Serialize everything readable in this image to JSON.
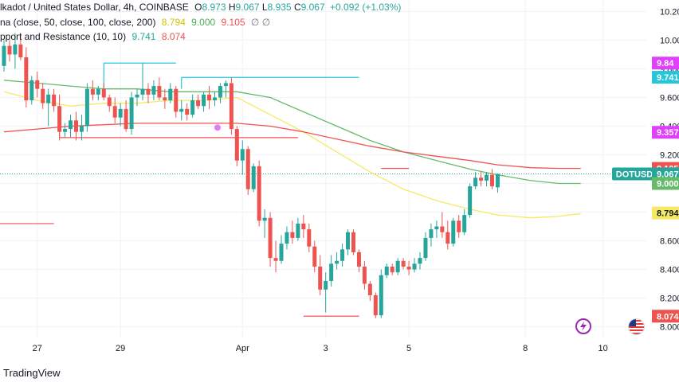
{
  "header": {
    "symbol_line": "lkadot / United States Dollar, 4h, COINBASE",
    "ohlc": [
      {
        "label": "O",
        "value": "8.973"
      },
      {
        "label": "H",
        "value": "9.067"
      },
      {
        "label": "L",
        "value": "8.935"
      },
      {
        "label": "C",
        "value": "9.067"
      }
    ],
    "change": "+0.092 (+1.03%)",
    "ma_line_label": "na (close, 50, close, 100, close, 200)",
    "ma_values": [
      "8.794",
      "9.000",
      "9.105"
    ],
    "ma_tail": "∅ ∅",
    "sr_line_label": "pport and Resistance (10, 10)",
    "sr_values": [
      "9.741",
      "8.074"
    ]
  },
  "footer": {
    "brand": "TradingView"
  },
  "colors": {
    "up": "#26a69a",
    "down": "#ef5350",
    "ma50": "#f5ea62",
    "ma100": "#66bb6a",
    "ma200": "#ef5350",
    "resistance": "#26c6da",
    "support": "#ef5350",
    "text": "#131722",
    "axis_text": "#131722",
    "grid": "#f0f3fa",
    "magenta": "#e040fb",
    "red_label": "#ef5350"
  },
  "chart_data": {
    "type": "candlestick",
    "title": "",
    "xlabel": "",
    "ylabel": "",
    "ylim": [
      7.92,
      10.28
    ],
    "y_ticks": [
      "10.200",
      "10.000",
      "9.800",
      "9.600",
      "9.400",
      "9.200",
      "9.000",
      "8.800",
      "8.600",
      "8.400",
      "8.200",
      "8.000"
    ],
    "x_ticks": [
      "27",
      "29",
      "Apr",
      "3",
      "5",
      "8",
      "10"
    ],
    "grid": true,
    "candles": [
      {
        "o": 9.82,
        "h": 10.0,
        "l": 9.78,
        "c": 9.96
      },
      {
        "o": 9.96,
        "h": 10.0,
        "l": 9.85,
        "c": 9.9
      },
      {
        "o": 9.9,
        "h": 10.05,
        "l": 9.8,
        "c": 9.97
      },
      {
        "o": 9.97,
        "h": 10.05,
        "l": 9.86,
        "c": 9.88
      },
      {
        "o": 9.88,
        "h": 9.95,
        "l": 9.53,
        "c": 9.58
      },
      {
        "o": 9.58,
        "h": 9.75,
        "l": 9.55,
        "c": 9.72
      },
      {
        "o": 9.72,
        "h": 9.78,
        "l": 9.6,
        "c": 9.66
      },
      {
        "o": 9.66,
        "h": 9.7,
        "l": 9.52,
        "c": 9.56
      },
      {
        "o": 9.56,
        "h": 9.66,
        "l": 9.4,
        "c": 9.62
      },
      {
        "o": 9.62,
        "h": 9.66,
        "l": 9.5,
        "c": 9.54
      },
      {
        "o": 9.54,
        "h": 9.62,
        "l": 9.3,
        "c": 9.36
      },
      {
        "o": 9.36,
        "h": 9.42,
        "l": 9.32,
        "c": 9.38
      },
      {
        "o": 9.38,
        "h": 9.48,
        "l": 9.32,
        "c": 9.44
      },
      {
        "o": 9.44,
        "h": 9.5,
        "l": 9.3,
        "c": 9.36
      },
      {
        "o": 9.36,
        "h": 9.48,
        "l": 9.3,
        "c": 9.4
      },
      {
        "o": 9.4,
        "h": 9.7,
        "l": 9.36,
        "c": 9.66
      },
      {
        "o": 9.66,
        "h": 9.72,
        "l": 9.58,
        "c": 9.62
      },
      {
        "o": 9.62,
        "h": 9.68,
        "l": 9.58,
        "c": 9.66
      },
      {
        "o": 9.66,
        "h": 9.7,
        "l": 9.58,
        "c": 9.6
      },
      {
        "o": 9.6,
        "h": 9.62,
        "l": 9.5,
        "c": 9.54
      },
      {
        "o": 9.54,
        "h": 9.6,
        "l": 9.42,
        "c": 9.46
      },
      {
        "o": 9.46,
        "h": 9.56,
        "l": 9.4,
        "c": 9.52
      },
      {
        "o": 9.52,
        "h": 9.58,
        "l": 9.36,
        "c": 9.38
      },
      {
        "o": 9.38,
        "h": 9.64,
        "l": 9.34,
        "c": 9.6
      },
      {
        "o": 9.6,
        "h": 9.66,
        "l": 9.54,
        "c": 9.62
      },
      {
        "o": 9.62,
        "h": 9.84,
        "l": 9.58,
        "c": 9.66
      },
      {
        "o": 9.66,
        "h": 9.7,
        "l": 9.56,
        "c": 9.62
      },
      {
        "o": 9.62,
        "h": 9.72,
        "l": 9.58,
        "c": 9.68
      },
      {
        "o": 9.68,
        "h": 9.74,
        "l": 9.58,
        "c": 9.6
      },
      {
        "o": 9.6,
        "h": 9.66,
        "l": 9.52,
        "c": 9.58
      },
      {
        "o": 9.58,
        "h": 9.7,
        "l": 9.56,
        "c": 9.66
      },
      {
        "o": 9.66,
        "h": 9.68,
        "l": 9.46,
        "c": 9.5
      },
      {
        "o": 9.5,
        "h": 9.58,
        "l": 9.44,
        "c": 9.52
      },
      {
        "o": 9.52,
        "h": 9.56,
        "l": 9.44,
        "c": 9.48
      },
      {
        "o": 9.48,
        "h": 9.62,
        "l": 9.46,
        "c": 9.58
      },
      {
        "o": 9.58,
        "h": 9.62,
        "l": 9.52,
        "c": 9.54
      },
      {
        "o": 9.54,
        "h": 9.64,
        "l": 9.5,
        "c": 9.62
      },
      {
        "o": 9.62,
        "h": 9.68,
        "l": 9.52,
        "c": 9.58
      },
      {
        "o": 9.58,
        "h": 9.64,
        "l": 9.54,
        "c": 9.6
      },
      {
        "o": 9.6,
        "h": 9.7,
        "l": 9.56,
        "c": 9.68
      },
      {
        "o": 9.68,
        "h": 9.72,
        "l": 9.6,
        "c": 9.7
      },
      {
        "o": 9.7,
        "h": 9.74,
        "l": 9.34,
        "c": 9.38
      },
      {
        "o": 9.38,
        "h": 9.4,
        "l": 9.12,
        "c": 9.16
      },
      {
        "o": 9.16,
        "h": 9.3,
        "l": 9.06,
        "c": 9.24
      },
      {
        "o": 9.24,
        "h": 9.26,
        "l": 8.92,
        "c": 8.96
      },
      {
        "o": 8.96,
        "h": 9.14,
        "l": 8.94,
        "c": 9.12
      },
      {
        "o": 9.12,
        "h": 9.16,
        "l": 8.7,
        "c": 8.74
      },
      {
        "o": 8.74,
        "h": 8.82,
        "l": 8.62,
        "c": 8.76
      },
      {
        "o": 8.76,
        "h": 8.8,
        "l": 8.42,
        "c": 8.48
      },
      {
        "o": 8.48,
        "h": 8.6,
        "l": 8.38,
        "c": 8.46
      },
      {
        "o": 8.46,
        "h": 8.64,
        "l": 8.44,
        "c": 8.58
      },
      {
        "o": 8.58,
        "h": 8.7,
        "l": 8.54,
        "c": 8.66
      },
      {
        "o": 8.66,
        "h": 8.74,
        "l": 8.58,
        "c": 8.62
      },
      {
        "o": 8.62,
        "h": 8.76,
        "l": 8.6,
        "c": 8.72
      },
      {
        "o": 8.72,
        "h": 8.78,
        "l": 8.62,
        "c": 8.68
      },
      {
        "o": 8.68,
        "h": 8.72,
        "l": 8.52,
        "c": 8.56
      },
      {
        "o": 8.56,
        "h": 8.6,
        "l": 8.38,
        "c": 8.42
      },
      {
        "o": 8.42,
        "h": 8.5,
        "l": 8.22,
        "c": 8.26
      },
      {
        "o": 8.26,
        "h": 8.38,
        "l": 8.1,
        "c": 8.32
      },
      {
        "o": 8.32,
        "h": 8.5,
        "l": 8.28,
        "c": 8.44
      },
      {
        "o": 8.44,
        "h": 8.52,
        "l": 8.4,
        "c": 8.46
      },
      {
        "o": 8.46,
        "h": 8.58,
        "l": 8.42,
        "c": 8.54
      },
      {
        "o": 8.54,
        "h": 8.68,
        "l": 8.5,
        "c": 8.66
      },
      {
        "o": 8.66,
        "h": 8.68,
        "l": 8.5,
        "c": 8.52
      },
      {
        "o": 8.52,
        "h": 8.54,
        "l": 8.38,
        "c": 8.42
      },
      {
        "o": 8.42,
        "h": 8.46,
        "l": 8.26,
        "c": 8.3
      },
      {
        "o": 8.3,
        "h": 8.32,
        "l": 8.18,
        "c": 8.22
      },
      {
        "o": 8.22,
        "h": 8.24,
        "l": 8.06,
        "c": 8.08
      },
      {
        "o": 8.08,
        "h": 8.4,
        "l": 8.06,
        "c": 8.36
      },
      {
        "o": 8.36,
        "h": 8.44,
        "l": 8.34,
        "c": 8.42
      },
      {
        "o": 8.42,
        "h": 8.44,
        "l": 8.36,
        "c": 8.38
      },
      {
        "o": 8.38,
        "h": 8.48,
        "l": 8.36,
        "c": 8.46
      },
      {
        "o": 8.46,
        "h": 8.48,
        "l": 8.4,
        "c": 8.42
      },
      {
        "o": 8.42,
        "h": 8.46,
        "l": 8.36,
        "c": 8.4
      },
      {
        "o": 8.4,
        "h": 8.48,
        "l": 8.38,
        "c": 8.44
      },
      {
        "o": 8.44,
        "h": 8.52,
        "l": 8.4,
        "c": 8.48
      },
      {
        "o": 8.48,
        "h": 8.66,
        "l": 8.46,
        "c": 8.62
      },
      {
        "o": 8.62,
        "h": 8.72,
        "l": 8.56,
        "c": 8.68
      },
      {
        "o": 8.68,
        "h": 8.74,
        "l": 8.62,
        "c": 8.7
      },
      {
        "o": 8.7,
        "h": 8.8,
        "l": 8.62,
        "c": 8.66
      },
      {
        "o": 8.66,
        "h": 8.74,
        "l": 8.54,
        "c": 8.58
      },
      {
        "o": 8.58,
        "h": 8.76,
        "l": 8.56,
        "c": 8.74
      },
      {
        "o": 8.74,
        "h": 8.78,
        "l": 8.62,
        "c": 8.66
      },
      {
        "o": 8.66,
        "h": 8.82,
        "l": 8.64,
        "c": 8.78
      },
      {
        "o": 8.78,
        "h": 9.0,
        "l": 8.76,
        "c": 8.98
      },
      {
        "o": 8.98,
        "h": 9.08,
        "l": 8.96,
        "c": 9.04
      },
      {
        "o": 9.04,
        "h": 9.08,
        "l": 8.98,
        "c": 9.02
      },
      {
        "o": 9.02,
        "h": 9.08,
        "l": 8.98,
        "c": 9.06
      },
      {
        "o": 9.06,
        "h": 9.1,
        "l": 8.96,
        "c": 8.98
      },
      {
        "o": 8.973,
        "h": 9.067,
        "l": 8.935,
        "c": 9.067
      }
    ],
    "series": [
      {
        "name": "MA 50",
        "color_key": "ma50",
        "points": [
          [
            0,
            9.64
          ],
          [
            6,
            9.58
          ],
          [
            12,
            9.54
          ],
          [
            18,
            9.56
          ],
          [
            24,
            9.56
          ],
          [
            30,
            9.58
          ],
          [
            36,
            9.58
          ],
          [
            42,
            9.6
          ],
          [
            48,
            9.48
          ],
          [
            54,
            9.36
          ],
          [
            60,
            9.22
          ],
          [
            66,
            9.08
          ],
          [
            72,
            8.96
          ],
          [
            78,
            8.88
          ],
          [
            84,
            8.82
          ],
          [
            89,
            8.78
          ],
          [
            95,
            8.76
          ],
          [
            100,
            8.77
          ],
          [
            104,
            8.79
          ]
        ]
      },
      {
        "name": "MA 100",
        "color_key": "ma100",
        "points": [
          [
            0,
            9.72
          ],
          [
            6,
            9.7
          ],
          [
            12,
            9.68
          ],
          [
            18,
            9.66
          ],
          [
            24,
            9.66
          ],
          [
            30,
            9.64
          ],
          [
            36,
            9.64
          ],
          [
            42,
            9.64
          ],
          [
            48,
            9.6
          ],
          [
            54,
            9.5
          ],
          [
            60,
            9.4
          ],
          [
            66,
            9.3
          ],
          [
            72,
            9.22
          ],
          [
            78,
            9.16
          ],
          [
            84,
            9.1
          ],
          [
            89,
            9.06
          ],
          [
            95,
            9.02
          ],
          [
            100,
            9.0
          ],
          [
            104,
            9.0
          ]
        ]
      },
      {
        "name": "MA 200",
        "color_key": "ma200",
        "points": [
          [
            0,
            9.36
          ],
          [
            6,
            9.38
          ],
          [
            12,
            9.4
          ],
          [
            18,
            9.41
          ],
          [
            24,
            9.42
          ],
          [
            30,
            9.42
          ],
          [
            36,
            9.42
          ],
          [
            42,
            9.42
          ],
          [
            48,
            9.4
          ],
          [
            54,
            9.36
          ],
          [
            60,
            9.31
          ],
          [
            66,
            9.26
          ],
          [
            72,
            9.22
          ],
          [
            78,
            9.19
          ],
          [
            84,
            9.16
          ],
          [
            89,
            9.13
          ],
          [
            95,
            9.11
          ],
          [
            100,
            9.105
          ],
          [
            104,
            9.105
          ]
        ]
      }
    ],
    "levels": [
      {
        "color_key": "support",
        "value": 8.72,
        "x_range": [
          -8,
          9
        ]
      },
      {
        "color_key": "support",
        "value": 9.32,
        "x_range": [
          10,
          53
        ]
      },
      {
        "color_key": "resistance",
        "value": 9.84,
        "x_range": [
          18,
          31
        ]
      },
      {
        "color_key": "resistance",
        "value": 9.74,
        "x_range": [
          32,
          64
        ]
      },
      {
        "color_key": "support",
        "value": 8.074,
        "x_range": [
          54,
          64
        ]
      },
      {
        "color_key": "support",
        "value": 9.105,
        "x_range": [
          68,
          73
        ]
      }
    ],
    "marker": {
      "x": 38.5,
      "y": 9.39
    },
    "current_price_line": 9.067,
    "price_labels": [
      {
        "text": "9.84",
        "bg": "#e040fb",
        "value": 9.84
      },
      {
        "text": "9.741",
        "bg": "#26c6da",
        "value": 9.741
      },
      {
        "text": "9.357",
        "bg": "#e040fb",
        "value": 9.357
      },
      {
        "text": "9.105",
        "bg": "#ef5350",
        "value": 9.105
      },
      {
        "text": "9.067",
        "bg": "#26a69a",
        "value": 9.067
      },
      {
        "text": "9.000",
        "bg": "#66bb6a",
        "value": 9.0
      },
      {
        "text": "8.794",
        "bg": "#f5ea62",
        "value": 8.794
      },
      {
        "text": "8.074",
        "bg": "#ef5350",
        "value": 8.074
      }
    ],
    "symbol_tag": "DOTUSD"
  }
}
